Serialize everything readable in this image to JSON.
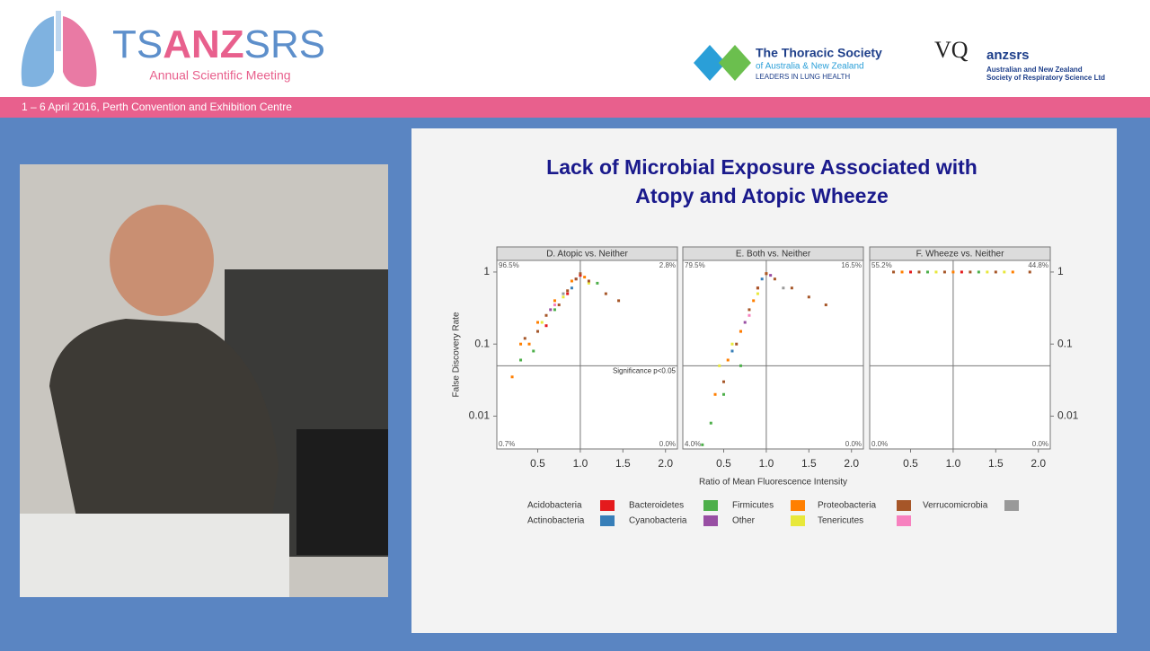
{
  "header": {
    "logo": {
      "part1": "TS",
      "part2": "ANZ",
      "part3": "SRS",
      "subtitle": "Annual Scientific Meeting"
    },
    "thoracic": {
      "name": "The Thoracic Society",
      "region": "of Australia & New Zealand",
      "tagline": "LEADERS IN LUNG HEALTH"
    },
    "anzsrs": {
      "mark": "VQ",
      "name": "anzsrs",
      "line1": "Australian and New Zealand",
      "line2": "Society of Respiratory Science Ltd"
    }
  },
  "banner": {
    "text": "1 – 6 April 2016, Perth Convention and Exhibition Centre"
  },
  "slide": {
    "title": [
      "Lack of Microbial Exposure Associated with",
      "Atopy and Atopic Wheeze"
    ]
  },
  "chart_data": [
    {
      "type": "scatter",
      "panel_title": "D. Atopic vs. Neither",
      "ylabel": "False Discovery Rate",
      "log_y": true,
      "ytick_side": "left",
      "xlim": [
        0.02,
        2.14
      ],
      "ylim": [
        0.0035,
        1.45
      ],
      "xticks": [
        0.5,
        {
          "value": 1,
          "label": "1.0"
        },
        1.5,
        {
          "value": 2,
          "label": "2.0"
        }
      ],
      "yticks": [
        1,
        0.1,
        0.01
      ],
      "vline": 1,
      "hline": 0.05,
      "hline_label": "Significance p<0.05",
      "corners": {
        "top_left": "96.5%",
        "top_right": "2.8%",
        "bottom_left": "0.7%",
        "bottom_right": "0.0%"
      },
      "series": [
        {
          "name": "Acidobacteria",
          "color": "#e41a1c",
          "x": [
            0.6,
            0.85,
            1.0
          ],
          "values": [
            0.18,
            0.5,
            0.9
          ]
        },
        {
          "name": "Actinobacteria",
          "color": "#377eb8",
          "x": [
            0.5,
            0.9
          ],
          "values": [
            0.15,
            0.6
          ]
        },
        {
          "name": "Bacteroidetes",
          "color": "#4daf4a",
          "x": [
            0.45,
            0.7,
            1.2,
            0.3
          ],
          "values": [
            0.08,
            0.3,
            0.7,
            0.06
          ]
        },
        {
          "name": "Cyanobacteria",
          "color": "#984ea3",
          "x": [
            0.65,
            0.95
          ],
          "values": [
            0.3,
            0.8
          ]
        },
        {
          "name": "Firmicutes",
          "color": "#ff7f00",
          "x": [
            0.3,
            0.5,
            0.7,
            0.9,
            1.05,
            0.2,
            0.4
          ],
          "values": [
            0.1,
            0.2,
            0.4,
            0.75,
            0.85,
            0.035,
            0.1
          ]
        },
        {
          "name": "Other",
          "color": "#e8e83a",
          "x": [
            0.55,
            0.8,
            1.1
          ],
          "values": [
            0.2,
            0.45,
            0.7
          ]
        },
        {
          "name": "Proteobacteria",
          "color": "#a65628",
          "x": [
            0.35,
            0.5,
            0.6,
            0.75,
            0.85,
            0.95,
            1.0,
            1.1,
            1.3,
            1.45
          ],
          "values": [
            0.12,
            0.15,
            0.25,
            0.35,
            0.55,
            0.8,
            0.95,
            0.75,
            0.5,
            0.4
          ]
        },
        {
          "name": "Tenericutes",
          "color": "#f781bf",
          "x": [
            0.7
          ],
          "values": [
            0.35
          ]
        },
        {
          "name": "Verrucomicrobia",
          "color": "#999999",
          "x": [
            0.8
          ],
          "values": [
            0.5
          ]
        }
      ]
    },
    {
      "type": "scatter",
      "panel_title": "E. Both vs. Neither",
      "xlabel": "Ratio of Mean Fluorescence Intensity",
      "log_y": true,
      "xlim": [
        0.02,
        2.14
      ],
      "ylim": [
        0.0035,
        1.45
      ],
      "xticks": [
        0.5,
        {
          "value": 1,
          "label": "1.0"
        },
        1.5,
        {
          "value": 2,
          "label": "2.0"
        }
      ],
      "vline": 1,
      "hline": 0.05,
      "corners": {
        "top_left": "79.5%",
        "top_right": "16.5%",
        "bottom_left": "4.0%",
        "bottom_right": "0.0%"
      },
      "series": [
        {
          "color": "#e41a1c",
          "x": [
            0.7,
            0.9
          ],
          "values": [
            0.15,
            0.6
          ]
        },
        {
          "color": "#377eb8",
          "x": [
            0.6,
            0.95
          ],
          "values": [
            0.08,
            0.8
          ]
        },
        {
          "color": "#4daf4a",
          "x": [
            0.25,
            0.35,
            0.5,
            0.7
          ],
          "values": [
            0.004,
            0.008,
            0.02,
            0.05
          ]
        },
        {
          "color": "#984ea3",
          "x": [
            0.75,
            1.05
          ],
          "values": [
            0.2,
            0.9
          ]
        },
        {
          "color": "#ff7f00",
          "x": [
            0.4,
            0.55,
            0.7,
            0.85,
            1.0
          ],
          "values": [
            0.02,
            0.06,
            0.15,
            0.4,
            0.95
          ]
        },
        {
          "color": "#e8e83a",
          "x": [
            0.45,
            0.6,
            0.9
          ],
          "values": [
            0.05,
            0.1,
            0.5
          ]
        },
        {
          "color": "#a65628",
          "x": [
            0.5,
            0.65,
            0.8,
            0.9,
            1.0,
            1.1,
            1.3,
            1.5,
            1.7
          ],
          "values": [
            0.03,
            0.1,
            0.3,
            0.6,
            0.95,
            0.8,
            0.6,
            0.45,
            0.35
          ]
        },
        {
          "color": "#f781bf",
          "x": [
            0.8
          ],
          "values": [
            0.25
          ]
        },
        {
          "color": "#999999",
          "x": [
            1.2
          ],
          "values": [
            0.6
          ]
        }
      ]
    },
    {
      "type": "scatter",
      "panel_title": "F. Wheeze vs. Neither",
      "log_y": true,
      "ytick_side": "right",
      "xlim": [
        0.02,
        2.14
      ],
      "ylim": [
        0.0035,
        1.45
      ],
      "xticks": [
        0.5,
        {
          "value": 1,
          "label": "1.0"
        },
        1.5,
        {
          "value": 2,
          "label": "2.0"
        }
      ],
      "yticks": [
        1,
        0.1,
        0.01
      ],
      "vline": 1,
      "hline": 0.05,
      "corners": {
        "top_left": "55.2%",
        "top_right": "44.8%",
        "bottom_left": "0.0%",
        "bottom_right": "0.0%"
      },
      "series": [
        {
          "color": "#e41a1c",
          "x": [
            0.5,
            1.1
          ],
          "values": [
            1,
            1
          ]
        },
        {
          "color": "#4daf4a",
          "x": [
            0.7,
            1.3
          ],
          "values": [
            1,
            1
          ]
        },
        {
          "color": "#ff7f00",
          "x": [
            0.4,
            1.0,
            1.7
          ],
          "values": [
            1,
            1,
            1
          ]
        },
        {
          "color": "#e8e83a",
          "x": [
            0.8,
            1.4,
            1.6
          ],
          "values": [
            1,
            1,
            1
          ]
        },
        {
          "color": "#a65628",
          "x": [
            0.3,
            0.6,
            0.9,
            1.2,
            1.5,
            1.9
          ],
          "values": [
            1,
            1,
            1,
            1,
            1,
            1
          ]
        }
      ]
    }
  ]
}
